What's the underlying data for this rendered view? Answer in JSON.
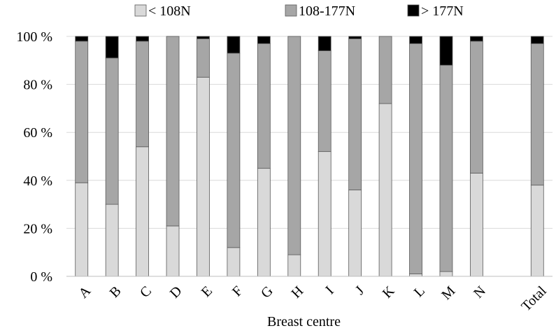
{
  "chart_data": {
    "type": "bar",
    "stacked": true,
    "categories": [
      "A",
      "B",
      "C",
      "D",
      "E",
      "F",
      "G",
      "H",
      "I",
      "J",
      "K",
      "L",
      "M",
      "N",
      "",
      "Total"
    ],
    "series": [
      {
        "name": "< 108N",
        "color": "#d9d9d9",
        "values": [
          39,
          30,
          54,
          21,
          83,
          12,
          45,
          9,
          52,
          36,
          72,
          1,
          2,
          43,
          null,
          38
        ]
      },
      {
        "name": "108-177N",
        "color": "#a6a6a6",
        "values": [
          59,
          61,
          44,
          79,
          16,
          81,
          52,
          91,
          42,
          63,
          28,
          96,
          86,
          55,
          null,
          59
        ]
      },
      {
        "name": "> 177N",
        "color": "#000000",
        "values": [
          2,
          9,
          2,
          0,
          1,
          7,
          3,
          0,
          6,
          1,
          0,
          3,
          12,
          2,
          null,
          3
        ]
      }
    ],
    "xlabel": "Breast centre",
    "ylabel": "",
    "ylim": [
      0,
      100
    ],
    "yticks": [
      "0 %",
      "20 %",
      "40 %",
      "60 %",
      "80 %",
      "100 %"
    ],
    "grid": true,
    "legend_position": "top"
  }
}
